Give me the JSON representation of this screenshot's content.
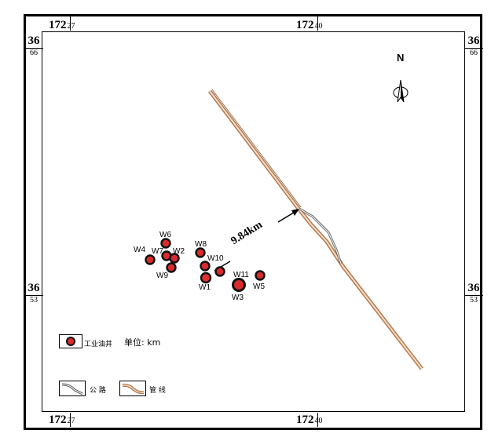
{
  "map": {
    "coords": {
      "top_left": {
        "deg": "172",
        "min": "27"
      },
      "top_right": {
        "deg": "172",
        "min": "40"
      },
      "bottom_left": {
        "deg": "172",
        "min": "27"
      },
      "bottom_right": {
        "deg": "172",
        "min": "40"
      },
      "left_upper": {
        "deg": "36",
        "min": "66"
      },
      "left_lower": {
        "deg": "36",
        "min": "53"
      },
      "right_upper": {
        "deg": "36",
        "min": "66"
      },
      "right_lower": {
        "deg": "36",
        "min": "53"
      }
    },
    "north": "N",
    "distance_label": "9.84km",
    "wells": [
      {
        "name": "W6"
      },
      {
        "name": "W4"
      },
      {
        "name": "W7"
      },
      {
        "name": "W2"
      },
      {
        "name": "W9"
      },
      {
        "name": "W8"
      },
      {
        "name": "W10"
      },
      {
        "name": "W1"
      },
      {
        "name": "W11"
      },
      {
        "name": "W3"
      },
      {
        "name": "W5"
      }
    ],
    "colors": {
      "well_fill": "#d92b2b",
      "well_stroke": "#111111",
      "pipeline": "#b47a4f"
    }
  },
  "legend": {
    "well_label": "工业油井",
    "unit": "单位: km",
    "road_label": "公 路",
    "pipeline_label": "管 线"
  }
}
